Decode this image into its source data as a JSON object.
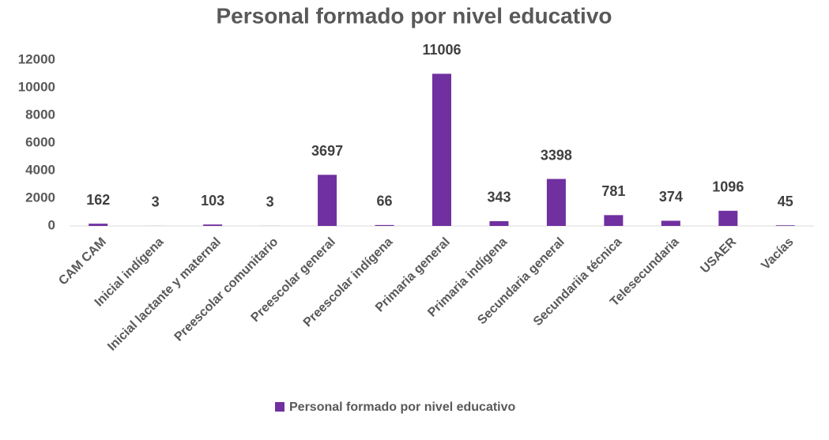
{
  "chart_data": {
    "type": "bar",
    "title": "Personal formado por nivel educativo",
    "categories": [
      "CAM CAM",
      "Inicial indígena",
      "Inicial lactante y maternal",
      "Preescolar comunitario",
      "Preescolar general",
      "Preescolar indígena",
      "Primaria general",
      "Primaria indígena",
      "Secundaria general",
      "Secundariia técnica",
      "Telesecundaria",
      "USAER",
      "Vacías"
    ],
    "series": [
      {
        "name": "Personal formado por nivel educativo",
        "color": "#7030a0",
        "values": [
          162,
          3,
          103,
          3,
          3697,
          66,
          11006,
          343,
          3398,
          781,
          374,
          1096,
          45
        ]
      }
    ],
    "ylim": [
      0,
      12000
    ],
    "yticks": [
      0,
      2000,
      4000,
      6000,
      8000,
      10000,
      12000
    ],
    "grid": false,
    "legend": "bottom",
    "data_labels": true
  }
}
